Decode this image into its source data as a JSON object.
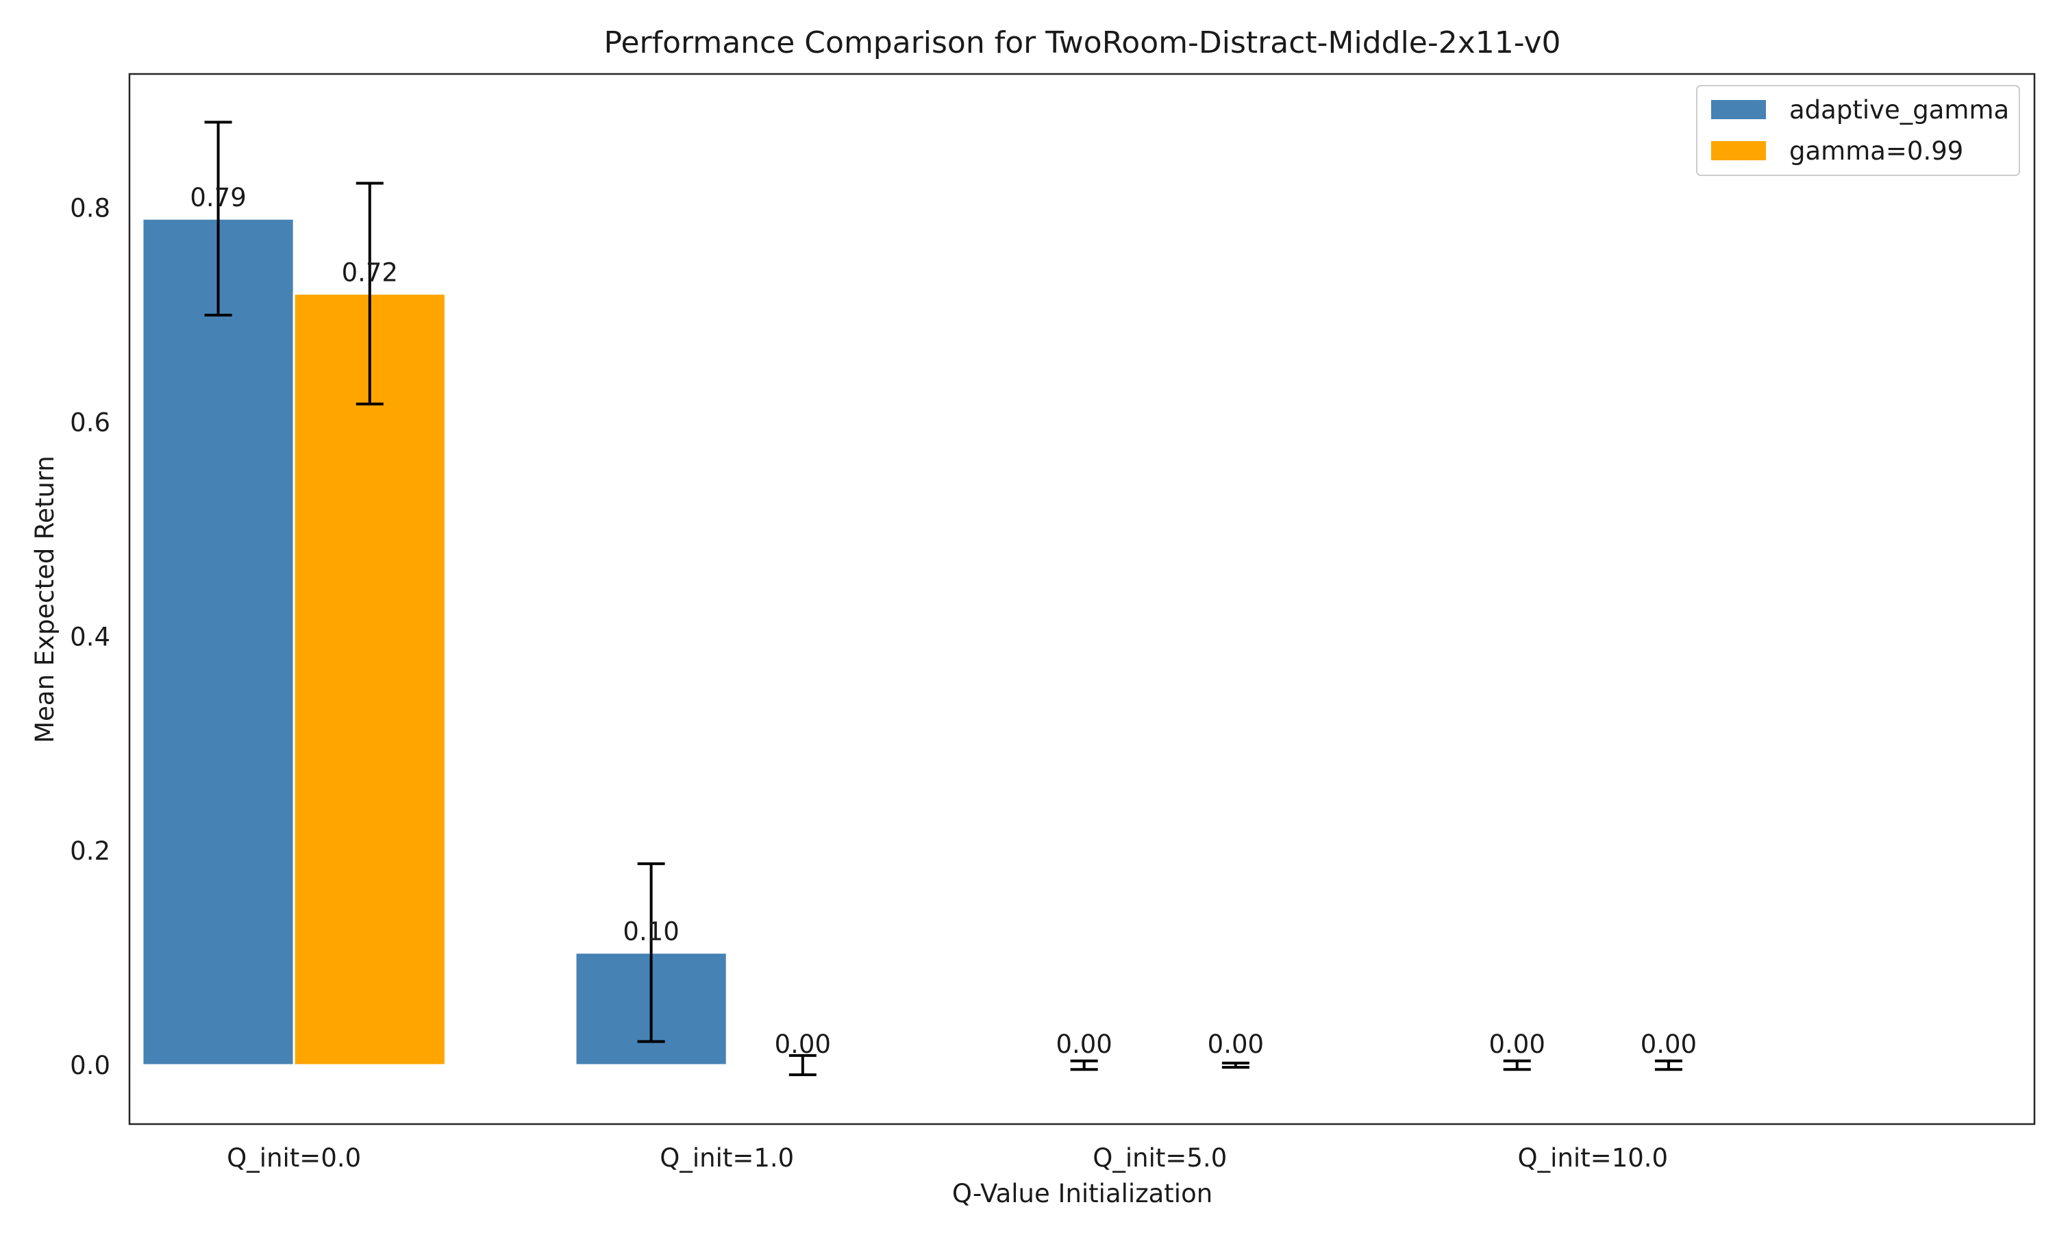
{
  "chart_data": {
    "type": "bar",
    "title": "Performance Comparison for TwoRoom-Distract-Middle-2x11-v0",
    "xlabel": "Q-Value Initialization",
    "ylabel": "Mean Expected Return",
    "categories": [
      "Q_init=0.0",
      "Q_init=1.0",
      "Q_init=5.0",
      "Q_init=10.0"
    ],
    "series": [
      {
        "name": "adaptive_gamma",
        "color": "#4682b4",
        "values": [
          0.79,
          0.105,
          0.0,
          0.0
        ],
        "errors": [
          0.09,
          0.083,
          0.004,
          0.004
        ],
        "value_labels": [
          "0.79",
          "0.10",
          "0.00",
          "0.00"
        ]
      },
      {
        "name": "gamma=0.99",
        "color": "#ffa500",
        "values": [
          0.72,
          0.0,
          0.0,
          0.0
        ],
        "errors": [
          0.103,
          0.009,
          0.002,
          0.004
        ],
        "value_labels": [
          "0.72",
          "0.00",
          "0.00",
          "0.00"
        ]
      }
    ],
    "yticks": [
      0.0,
      0.2,
      0.4,
      0.6,
      0.8
    ],
    "ylim": [
      -0.055,
      0.925
    ],
    "grid": false,
    "legend": "top-right"
  }
}
